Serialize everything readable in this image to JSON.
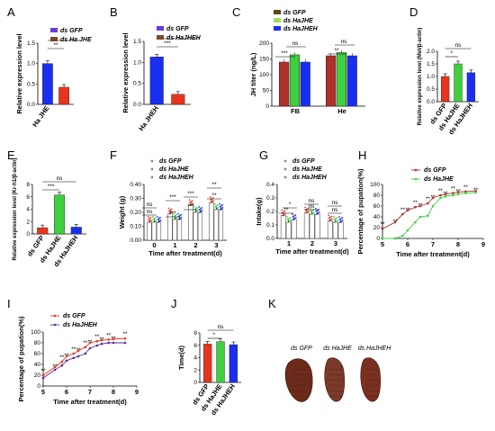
{
  "colors": {
    "gfp": "#6c3bd8",
    "red": "#e8341c",
    "brown": "#7a4a2a",
    "green": "#3fcf3f",
    "blue": "#1a2ef0",
    "olive": "#5a4a1a",
    "lightgreen": "#9ee05a",
    "darkred": "#b0302a",
    "purple": "#5a2a9a"
  },
  "panels": [
    {
      "id": "A",
      "label": "A",
      "type": "bar",
      "ylabel": "Relative expression level",
      "ymax": 1.5,
      "yticks": [
        "0.0",
        "0.5",
        "1.0",
        "1.5"
      ],
      "categories": [
        "Ha JHE"
      ],
      "legend": [
        "ds GFP",
        "ds Ha JHE"
      ],
      "legend_colors": [
        "#6c3bd8",
        "#7a4a2a"
      ],
      "values": [
        1.0,
        0.42
      ],
      "bar_colors": [
        "#1a2ef0",
        "#e8341c"
      ],
      "sig": [
        "**"
      ]
    },
    {
      "id": "B",
      "label": "B",
      "type": "bar",
      "ylabel": "Relative expression level",
      "ymax": 1.5,
      "yticks": [
        "0.0",
        "0.5",
        "1.0",
        "1.5"
      ],
      "categories": [
        "Ha JHEH"
      ],
      "legend": [
        "ds GFP",
        "ds HaJHEH"
      ],
      "legend_colors": [
        "#6c3bd8",
        "#7a4a2a"
      ],
      "values": [
        1.13,
        0.24
      ],
      "bar_colors": [
        "#1a2ef0",
        "#e8341c"
      ],
      "sig": [
        "***"
      ]
    },
    {
      "id": "C",
      "label": "C",
      "type": "groupbar",
      "ylabel": "JH titer (ng/L)",
      "ymax": 200,
      "yticks": [
        "0",
        "50",
        "100",
        "150",
        "200"
      ],
      "categories": [
        "FB",
        "He"
      ],
      "legend": [
        "ds GFP",
        "ds HaJHE",
        "ds HaJHEH"
      ],
      "legend_colors": [
        "#5a4a1a",
        "#9ee05a",
        "#1a2ef0"
      ],
      "series": [
        {
          "values": [
            140,
            160
          ],
          "color": "#b0302a"
        },
        {
          "values": [
            163,
            170
          ],
          "color": "#3fcf3f"
        },
        {
          "values": [
            140,
            160
          ],
          "color": "#1a2ef0"
        }
      ],
      "sig": [
        "***",
        "ns",
        "**",
        "ns"
      ]
    },
    {
      "id": "D",
      "label": "D",
      "type": "bar",
      "ylabel": "Relative expression level (Met/β-actin)",
      "ymax": 2.0,
      "yticks": [
        "0.0",
        "0.5",
        "1.0",
        "1.5",
        "2.0"
      ],
      "categories": [
        "ds GFP",
        "ds HaJHE",
        "ds HaJHEH"
      ],
      "values": [
        1.0,
        1.5,
        1.15
      ],
      "bar_colors": [
        "#e8341c",
        "#3fcf3f",
        "#1a2ef0"
      ],
      "sig": [
        "*",
        "ns"
      ]
    },
    {
      "id": "E",
      "label": "E",
      "type": "bar",
      "ylabel": "Relative expression level (Kr-h1/β-actin)",
      "ymax": 8,
      "yticks": [
        "0",
        "2",
        "4",
        "6",
        "8"
      ],
      "categories": [
        "ds GFP",
        "ds HaJHE",
        "ds HaJHEH"
      ],
      "values": [
        1.0,
        6.3,
        1.1
      ],
      "bar_colors": [
        "#e8341c",
        "#3fcf3f",
        "#1a2ef0"
      ],
      "sig": [
        "***",
        "ns"
      ]
    },
    {
      "id": "F",
      "label": "F",
      "type": "groupbar",
      "ylabel": "Weight (g)",
      "xlabel": "Time after treatment(d)",
      "ymax": 0.4,
      "yticks": [
        "0.00",
        "0.10",
        "0.20",
        "0.30",
        "0.40"
      ],
      "categories": [
        "0",
        "1",
        "2",
        "3"
      ],
      "legend": [
        "ds GFP",
        "ds HaJHE",
        "ds HaJHEH"
      ],
      "series": [
        {
          "values": [
            0.13,
            0.19,
            0.25,
            0.27
          ],
          "color": "#e8341c"
        },
        {
          "values": [
            0.13,
            0.15,
            0.2,
            0.22
          ],
          "color": "#3fcf3f"
        },
        {
          "values": [
            0.13,
            0.15,
            0.2,
            0.22
          ],
          "color": "#1a2ef0"
        }
      ],
      "sig": [
        "ns",
        "ns",
        "***",
        "***",
        "***",
        "***",
        "**",
        "**"
      ]
    },
    {
      "id": "G",
      "label": "G",
      "type": "groupbar",
      "ylabel": "Intake(g)",
      "xlabel": "Time after treatment(d)",
      "ymax": 0.4,
      "yticks": [
        "0.0",
        "0.1",
        "0.2",
        "0.3",
        "0.4"
      ],
      "categories": [
        "1",
        "2",
        "3"
      ],
      "legend": [
        "ds GFP",
        "ds HaJHE",
        "ds HaJHEH"
      ],
      "series": [
        {
          "values": [
            0.17,
            0.19,
            0.13
          ],
          "color": "#e8341c"
        },
        {
          "values": [
            0.12,
            0.18,
            0.12
          ],
          "color": "#3fcf3f"
        },
        {
          "values": [
            0.14,
            0.18,
            0.12
          ],
          "color": "#1a2ef0"
        }
      ],
      "sig": [
        "**",
        "*",
        "ns",
        "ns",
        "ns",
        "ns"
      ]
    },
    {
      "id": "H",
      "label": "H",
      "type": "line",
      "ylabel": "Percentage of pupation(%)",
      "xlabel": "Time after treatment(d)",
      "xmin": 5,
      "xmax": 9,
      "ymax": 100,
      "xticks": [
        "5",
        "6",
        "7",
        "8",
        "9"
      ],
      "yticks": [
        "0",
        "20",
        "40",
        "60",
        "80",
        "100"
      ],
      "legend": [
        "ds GFP",
        "ds HaJHE"
      ],
      "series": [
        {
          "name": "ds GFP",
          "color": "#b0302a",
          "x": [
            5,
            5.5,
            5.8,
            6,
            6.3,
            6.5,
            6.8,
            7,
            7.3,
            7.5,
            7.8,
            8,
            8.3,
            8.7
          ],
          "y": [
            18,
            30,
            45,
            52,
            58,
            60,
            65,
            75,
            80,
            82,
            84,
            86,
            87,
            88
          ]
        },
        {
          "name": "ds HaJHE",
          "color": "#3fcf3f",
          "x": [
            5,
            5.5,
            5.8,
            6,
            6.3,
            6.5,
            6.8,
            7,
            7.3,
            7.5,
            7.8,
            8,
            8.3,
            8.7
          ],
          "y": [
            0,
            0,
            5,
            15,
            30,
            40,
            42,
            60,
            75,
            78,
            80,
            82,
            84,
            85
          ]
        }
      ],
      "sig": [
        "**",
        "**",
        "**",
        "**",
        "**",
        "**",
        "**",
        "**",
        "**",
        "**",
        "**",
        "**",
        "**",
        "**"
      ]
    },
    {
      "id": "I",
      "label": "I",
      "type": "line",
      "ylabel": "Percentage of pupation(%)",
      "xlabel": "Time after treatment(d)",
      "xmin": 5,
      "xmax": 9,
      "ymax": 100,
      "xticks": [
        "5",
        "6",
        "7",
        "8",
        "9"
      ],
      "yticks": [
        "0",
        "20",
        "40",
        "60",
        "80",
        "100"
      ],
      "legend": [
        "ds GFP",
        "ds HaJHEH"
      ],
      "series": [
        {
          "name": "ds GFP",
          "color": "#e8341c",
          "x": [
            5,
            5.5,
            5.8,
            6,
            6.3,
            6.5,
            6.8,
            7,
            7.3,
            7.5,
            7.8,
            8,
            8.5
          ],
          "y": [
            20,
            35,
            45,
            55,
            60,
            65,
            72,
            80,
            83,
            85,
            86,
            87,
            88
          ]
        },
        {
          "name": "ds HaJHEH",
          "color": "#5a2a9a",
          "x": [
            5,
            5.5,
            5.8,
            6,
            6.3,
            6.5,
            6.8,
            7,
            7.3,
            7.5,
            7.8,
            8,
            8.5
          ],
          "y": [
            15,
            30,
            38,
            47,
            52,
            55,
            60,
            70,
            75,
            78,
            80,
            80,
            80
          ]
        }
      ],
      "sig": [
        "**",
        "**",
        "**",
        "**",
        "**",
        "**",
        "**",
        "**",
        "**",
        "**",
        "**",
        "**",
        "**"
      ]
    },
    {
      "id": "J",
      "label": "J",
      "type": "bar",
      "ylabel": "Time(d)",
      "ymax": 8,
      "yticks": [
        "0",
        "2",
        "4",
        "6",
        "8"
      ],
      "categories": [
        "ds GFP",
        "ds HaJHE",
        "ds HaJHEH"
      ],
      "values": [
        6.2,
        6.6,
        6.1
      ],
      "bar_colors": [
        "#e8341c",
        "#3fcf3f",
        "#1a2ef0"
      ],
      "sig": [
        "*",
        "ns"
      ]
    },
    {
      "id": "K",
      "label": "K",
      "type": "image",
      "captions": [
        "ds GFP",
        "ds HaJHE",
        "ds HaJHEH"
      ]
    }
  ]
}
